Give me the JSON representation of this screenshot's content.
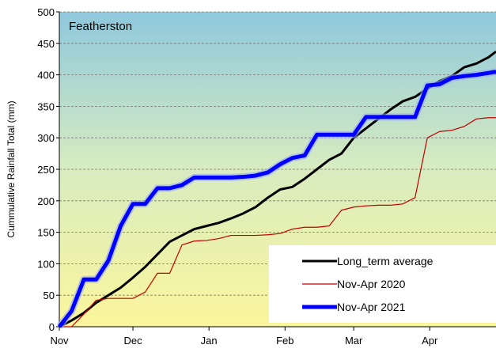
{
  "chart_data": {
    "type": "line",
    "title": "Featherston",
    "y_label": "Cummulative Rainfall Total (mm)",
    "x": [
      0,
      5,
      10,
      15,
      20,
      25,
      30,
      35,
      40,
      45,
      50,
      55,
      60,
      65,
      70,
      75,
      80,
      85,
      90,
      95,
      100,
      105,
      110,
      115,
      120,
      125,
      130,
      135,
      140,
      145,
      150,
      155,
      160,
      165,
      170,
      175,
      178
    ],
    "xlim": [
      0,
      178
    ],
    "xticks": [
      {
        "value": 0,
        "label": "Nov"
      },
      {
        "value": 30,
        "label": "Dec"
      },
      {
        "value": 61,
        "label": "Jan"
      },
      {
        "value": 92,
        "label": "Feb"
      },
      {
        "value": 120,
        "label": "Mar"
      },
      {
        "value": 151,
        "label": "Apr"
      }
    ],
    "ylim": [
      0,
      500
    ],
    "yticks": [
      0,
      50,
      100,
      150,
      200,
      250,
      300,
      350,
      400,
      450,
      500
    ],
    "grid": true,
    "legend": "lower right",
    "series": [
      {
        "name": "Long_term average",
        "color": "#000000",
        "width": 3,
        "values": [
          0,
          10,
          22,
          38,
          50,
          62,
          78,
          95,
          115,
          135,
          145,
          155,
          160,
          165,
          172,
          180,
          190,
          205,
          218,
          222,
          235,
          250,
          265,
          275,
          300,
          315,
          330,
          345,
          358,
          365,
          378,
          390,
          398,
          412,
          418,
          428,
          437
        ]
      },
      {
        "name": "Nov-Apr 2020",
        "color": "#c00000",
        "width": 1.2,
        "values": [
          0,
          0,
          20,
          42,
          45,
          45,
          45,
          55,
          85,
          85,
          130,
          136,
          137,
          140,
          145,
          145,
          145,
          146,
          148,
          155,
          158,
          158,
          160,
          185,
          190,
          192,
          193,
          193,
          195,
          205,
          300,
          310,
          312,
          318,
          330,
          332,
          332
        ]
      },
      {
        "name": "Nov-Apr 2021",
        "color": "#0000ff",
        "width": 5,
        "values": [
          0,
          25,
          75,
          75,
          105,
          160,
          195,
          195,
          220,
          220,
          225,
          237,
          237,
          237,
          237,
          238,
          240,
          245,
          258,
          268,
          272,
          305,
          305,
          305,
          305,
          333,
          333,
          333,
          333,
          333,
          383,
          385,
          395,
          398,
          400,
          403,
          405
        ]
      }
    ]
  }
}
